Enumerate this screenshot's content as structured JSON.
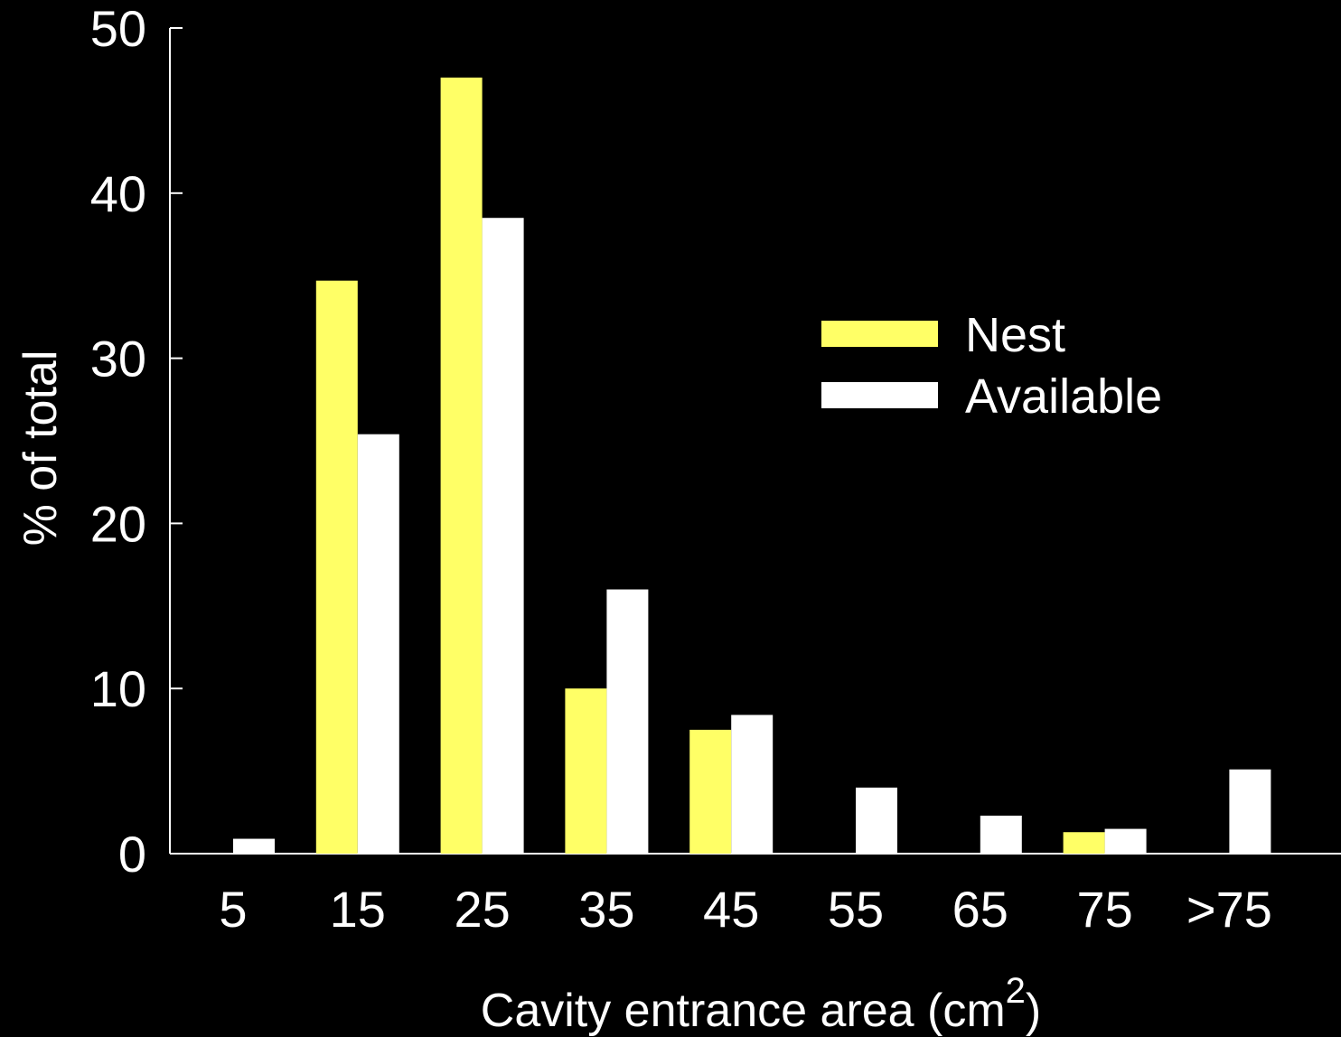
{
  "chart_data": {
    "type": "bar",
    "title": "",
    "xlabel": "Cavity entrance area (cm",
    "xlabel_superscript": "2",
    "xlabel_close": ")",
    "ylabel": "% of total",
    "ylim": [
      0,
      50
    ],
    "yticks": [
      0,
      10,
      20,
      30,
      40,
      50
    ],
    "grid": false,
    "legend_position": "right",
    "categories": [
      "5",
      "15",
      "25",
      "35",
      "45",
      "55",
      "65",
      "75",
      ">75"
    ],
    "series": [
      {
        "name": "Nest",
        "color": "#ffff66",
        "values": [
          0,
          34.7,
          47.0,
          10.0,
          7.5,
          0,
          0,
          1.3,
          0
        ]
      },
      {
        "name": "Available",
        "color": "#ffffff",
        "values": [
          0.9,
          25.4,
          38.5,
          16.0,
          8.4,
          4.0,
          2.3,
          1.5,
          5.1
        ]
      }
    ]
  },
  "colors": {
    "background": "#000000",
    "axis": "#ffffff"
  }
}
